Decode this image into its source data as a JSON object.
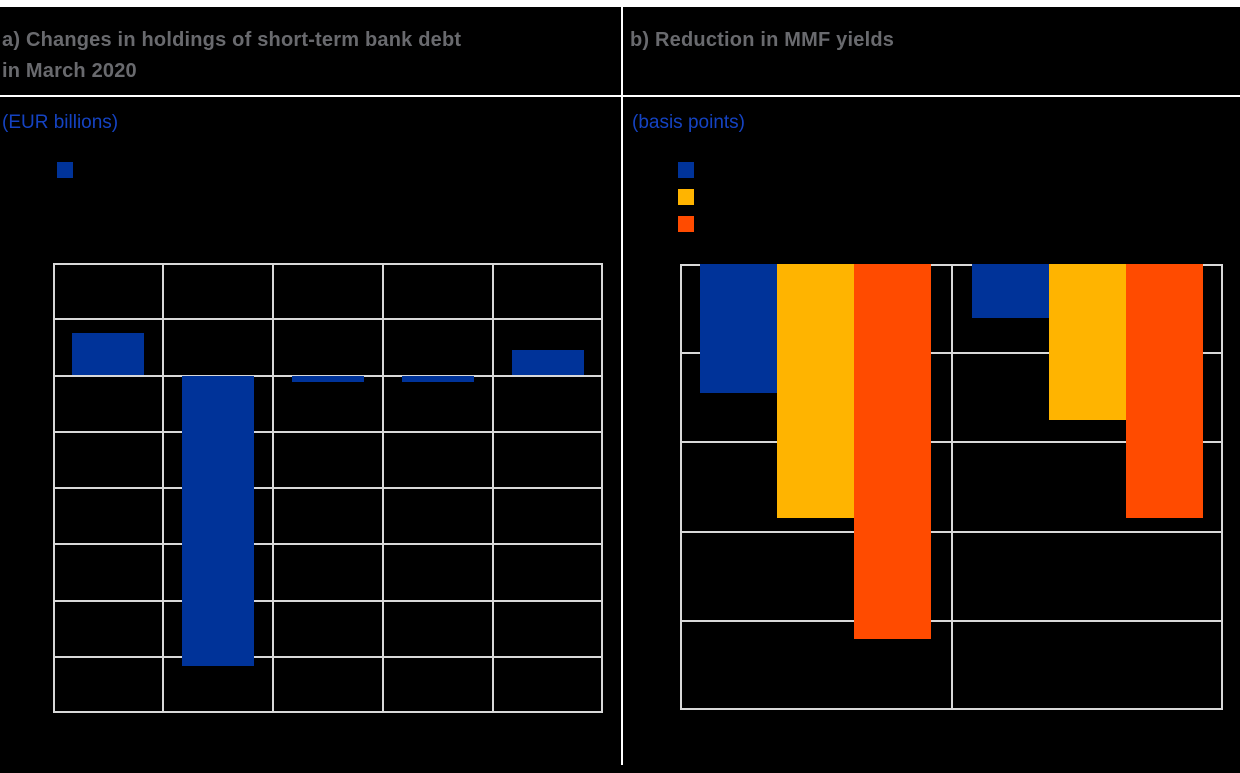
{
  "figure": {
    "background": "#000000",
    "labels_visible": false
  },
  "colors": {
    "blue": "#003399",
    "yellow": "#ffb400",
    "orange": "#ff4b00",
    "grid": "#d9d9d9",
    "title_gray": "#696a6e",
    "unit_blue": "#1543c2",
    "rule_white": "#ffffff"
  },
  "panel_a": {
    "title": "a) Changes in holdings of short-term bank debt in March 2020",
    "unit": "(EUR billions)",
    "legend": [
      {
        "swatch": "blue-square-swatch",
        "color_key": "blue",
        "label": ""
      }
    ]
  },
  "panel_b": {
    "title": "b) Reduction in MMF yields",
    "unit": "(basis points)",
    "legend": [
      {
        "swatch": "blue-square-swatch",
        "color_key": "blue",
        "label": ""
      },
      {
        "swatch": "yellow-square-swatch",
        "color_key": "yellow",
        "label": ""
      },
      {
        "swatch": "orange-square-swatch",
        "color_key": "orange",
        "label": ""
      }
    ]
  },
  "chart_data": [
    {
      "type": "bar",
      "panel": "a",
      "title": "a) Changes in holdings of short-term bank debt in March 2020",
      "ylabel": "(EUR billions)",
      "categories": [
        "",
        "",
        "",
        "",
        ""
      ],
      "values": [
        7.5,
        -51.5,
        -1,
        -1,
        4.5
      ],
      "bar_color_key": "blue",
      "ylim": [
        -60,
        20
      ],
      "ytick_step": 10,
      "grid": true,
      "legend_position": "top-left",
      "tick_labels_visible": false
    },
    {
      "type": "bar",
      "panel": "b",
      "title": "b) Reduction in MMF yields",
      "ylabel": "(basis points)",
      "categories": [
        "",
        ""
      ],
      "series": [
        {
          "name": "",
          "color_key": "blue",
          "values": [
            -29,
            -12
          ]
        },
        {
          "name": "",
          "color_key": "yellow",
          "values": [
            -57,
            -35
          ]
        },
        {
          "name": "",
          "color_key": "orange",
          "values": [
            -84,
            -57
          ]
        }
      ],
      "ylim": [
        -100,
        0
      ],
      "ytick_step": 20,
      "grid": true,
      "legend_position": "top-left",
      "tick_labels_visible": false
    }
  ]
}
